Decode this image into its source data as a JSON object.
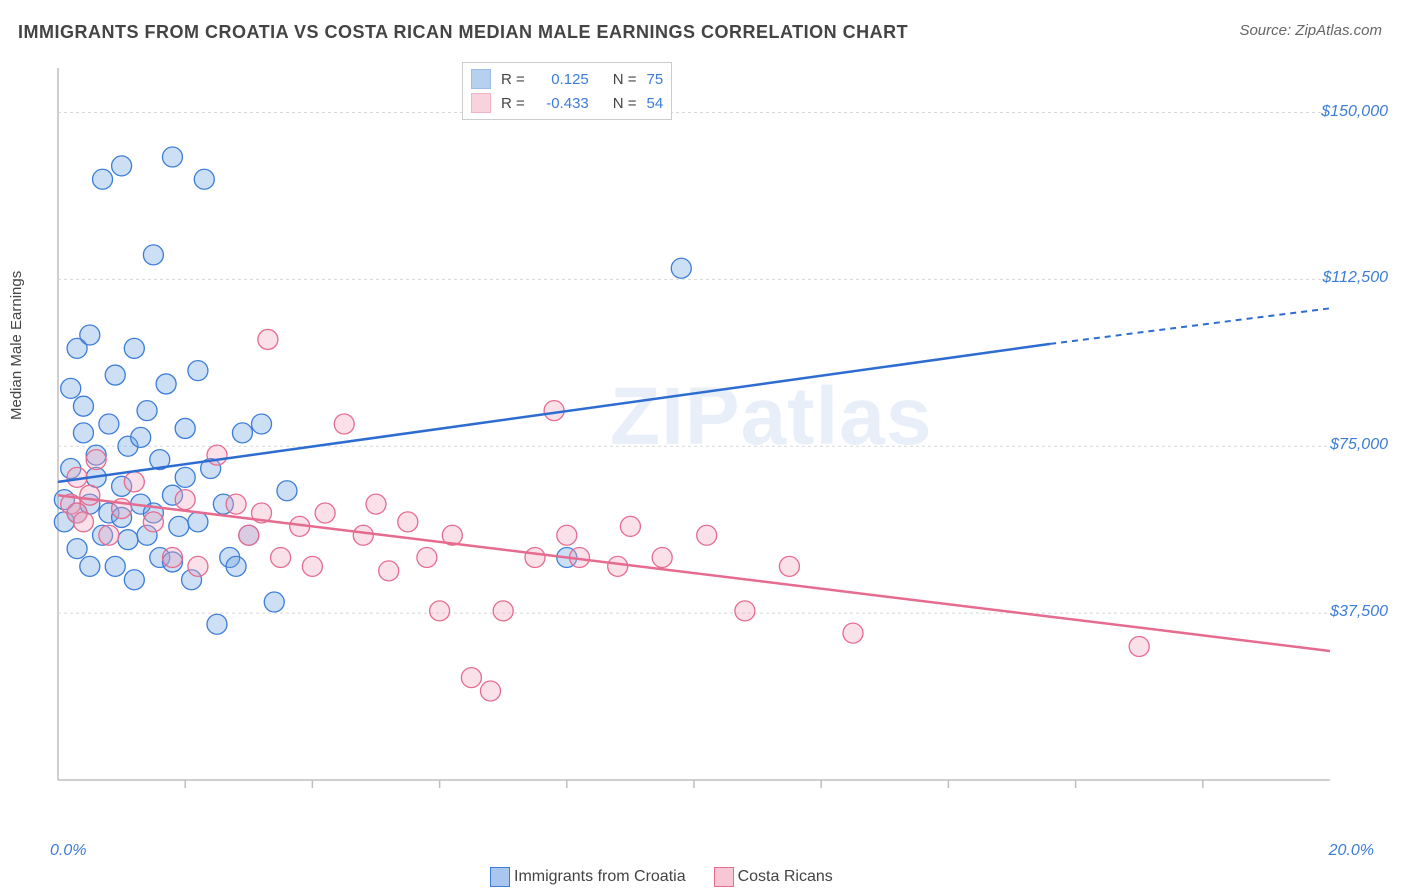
{
  "title": "IMMIGRANTS FROM CROATIA VS COSTA RICAN MEDIAN MALE EARNINGS CORRELATION CHART",
  "source": "Source: ZipAtlas.com",
  "watermark": "ZIPatlas",
  "ylabel": "Median Male Earnings",
  "chart": {
    "type": "scatter-with-regression",
    "background_color": "#ffffff",
    "grid_color": "#d8d8d8",
    "border_color": "#bfbfbf",
    "x": {
      "min": 0.0,
      "max": 20.0,
      "label_min": "0.0%",
      "label_max": "20.0%",
      "ticks": [
        2,
        4,
        6,
        8,
        10,
        12,
        14,
        16,
        18
      ]
    },
    "y": {
      "min": 0,
      "max": 160000,
      "gridlines": [
        37500,
        75000,
        112500,
        150000
      ],
      "tick_labels": [
        "$37,500",
        "$75,000",
        "$112,500",
        "$150,000"
      ]
    },
    "marker_radius": 10,
    "marker_fill_opacity": 0.35,
    "marker_stroke_width": 1.3,
    "series": [
      {
        "name": "Immigrants from Croatia",
        "color": "#6fa3e0",
        "stroke": "#3b7dd8",
        "line_color": "#2d6cd0",
        "r_label": "R =",
        "r_value": "0.125",
        "n_label": "N =",
        "n_value": "75",
        "regression": {
          "x1": 0.0,
          "y1": 67000,
          "x2_solid": 15.6,
          "y2_solid": 98000,
          "x2_dash": 20.0,
          "y2_dash": 106000
        },
        "points": [
          [
            0.1,
            63000
          ],
          [
            0.1,
            58000
          ],
          [
            0.2,
            70000
          ],
          [
            0.2,
            88000
          ],
          [
            0.3,
            97000
          ],
          [
            0.3,
            60000
          ],
          [
            0.3,
            52000
          ],
          [
            0.4,
            84000
          ],
          [
            0.4,
            78000
          ],
          [
            0.5,
            100000
          ],
          [
            0.5,
            62000
          ],
          [
            0.5,
            48000
          ],
          [
            0.6,
            68000
          ],
          [
            0.6,
            73000
          ],
          [
            0.7,
            135000
          ],
          [
            0.7,
            55000
          ],
          [
            0.8,
            60000
          ],
          [
            0.8,
            80000
          ],
          [
            0.9,
            91000
          ],
          [
            0.9,
            48000
          ],
          [
            1.0,
            66000
          ],
          [
            1.0,
            138000
          ],
          [
            1.0,
            59000
          ],
          [
            1.1,
            54000
          ],
          [
            1.1,
            75000
          ],
          [
            1.2,
            97000
          ],
          [
            1.2,
            45000
          ],
          [
            1.3,
            62000
          ],
          [
            1.3,
            77000
          ],
          [
            1.4,
            83000
          ],
          [
            1.4,
            55000
          ],
          [
            1.5,
            118000
          ],
          [
            1.5,
            60000
          ],
          [
            1.6,
            50000
          ],
          [
            1.6,
            72000
          ],
          [
            1.7,
            89000
          ],
          [
            1.8,
            64000
          ],
          [
            1.8,
            49000
          ],
          [
            1.8,
            140000
          ],
          [
            1.9,
            57000
          ],
          [
            2.0,
            79000
          ],
          [
            2.0,
            68000
          ],
          [
            2.1,
            45000
          ],
          [
            2.2,
            92000
          ],
          [
            2.2,
            58000
          ],
          [
            2.3,
            135000
          ],
          [
            2.4,
            70000
          ],
          [
            2.5,
            35000
          ],
          [
            2.6,
            62000
          ],
          [
            2.7,
            50000
          ],
          [
            2.8,
            48000
          ],
          [
            2.9,
            78000
          ],
          [
            3.0,
            55000
          ],
          [
            3.2,
            80000
          ],
          [
            3.4,
            40000
          ],
          [
            3.6,
            65000
          ],
          [
            8.0,
            50000
          ],
          [
            9.8,
            115000
          ]
        ]
      },
      {
        "name": "Costa Ricans",
        "color": "#f2a6bd",
        "stroke": "#e56b8f",
        "line_color": "#e56b8f",
        "r_label": "R =",
        "r_value": "-0.433",
        "n_label": "N =",
        "n_value": "54",
        "regression": {
          "x1": 0.0,
          "y1": 64000,
          "x2_solid": 20.0,
          "y2_solid": 29000
        },
        "points": [
          [
            0.2,
            62000
          ],
          [
            0.3,
            60000
          ],
          [
            0.3,
            68000
          ],
          [
            0.4,
            58000
          ],
          [
            0.5,
            64000
          ],
          [
            0.6,
            72000
          ],
          [
            0.8,
            55000
          ],
          [
            1.0,
            61000
          ],
          [
            1.2,
            67000
          ],
          [
            1.5,
            58000
          ],
          [
            1.8,
            50000
          ],
          [
            2.0,
            63000
          ],
          [
            2.2,
            48000
          ],
          [
            2.5,
            73000
          ],
          [
            2.8,
            62000
          ],
          [
            3.0,
            55000
          ],
          [
            3.2,
            60000
          ],
          [
            3.3,
            99000
          ],
          [
            3.5,
            50000
          ],
          [
            3.8,
            57000
          ],
          [
            4.0,
            48000
          ],
          [
            4.2,
            60000
          ],
          [
            4.5,
            80000
          ],
          [
            4.8,
            55000
          ],
          [
            5.0,
            62000
          ],
          [
            5.2,
            47000
          ],
          [
            5.5,
            58000
          ],
          [
            5.8,
            50000
          ],
          [
            6.0,
            38000
          ],
          [
            6.2,
            55000
          ],
          [
            6.5,
            23000
          ],
          [
            6.8,
            20000
          ],
          [
            7.0,
            38000
          ],
          [
            7.5,
            50000
          ],
          [
            7.8,
            83000
          ],
          [
            8.0,
            55000
          ],
          [
            8.2,
            50000
          ],
          [
            8.8,
            48000
          ],
          [
            9.0,
            57000
          ],
          [
            9.5,
            50000
          ],
          [
            10.2,
            55000
          ],
          [
            10.8,
            38000
          ],
          [
            11.5,
            48000
          ],
          [
            12.5,
            33000
          ],
          [
            17.0,
            30000
          ]
        ]
      }
    ]
  },
  "legend_bottom": [
    {
      "label": "Immigrants from Croatia",
      "fill": "#a9c7ee",
      "stroke": "#3b7dd8"
    },
    {
      "label": "Costa Ricans",
      "fill": "#f7c7d5",
      "stroke": "#e56b8f"
    }
  ],
  "stat_value_color": "#3b7dd8"
}
